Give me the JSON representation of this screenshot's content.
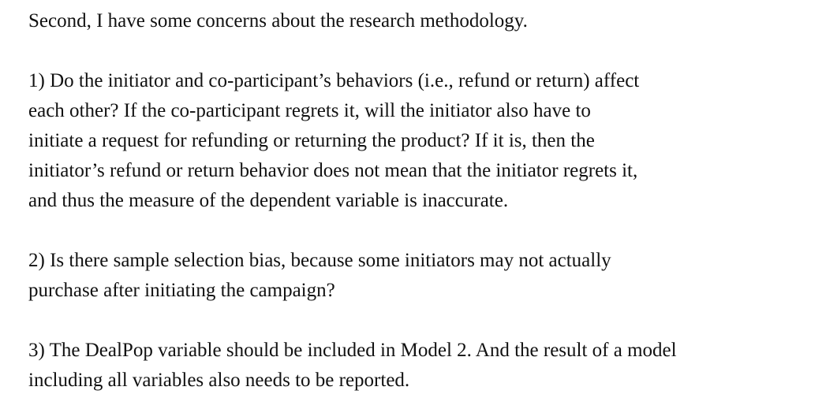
{
  "document": {
    "intro": "Second, I have some concerns about the research methodology.",
    "points": [
      {
        "lines": [
          "1) Do the initiator and co-participant’s behaviors (i.e., refund or return) affect",
          "each other? If the co-participant regrets it, will the initiator also have to",
          "initiate a request for refunding or returning the product? If it is, then the",
          "initiator’s refund or return behavior does not mean that the initiator regrets it,",
          "and thus the measure of the dependent variable is inaccurate."
        ]
      },
      {
        "lines": [
          "2) Is there sample selection bias, because some initiators may not actually",
          "purchase after initiating the campaign?"
        ]
      },
      {
        "lines": [
          "3) The DealPop variable should be included in Model 2. And the result of a model",
          "including all variables also needs to be reported."
        ]
      }
    ]
  }
}
